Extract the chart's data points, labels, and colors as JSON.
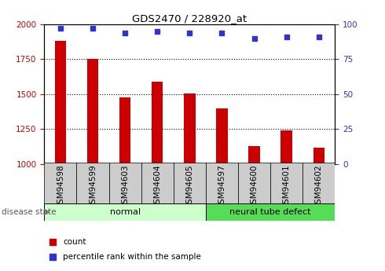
{
  "title": "GDS2470 / 228920_at",
  "categories": [
    "GSM94598",
    "GSM94599",
    "GSM94603",
    "GSM94604",
    "GSM94605",
    "GSM94597",
    "GSM94600",
    "GSM94601",
    "GSM94602"
  ],
  "counts": [
    1880,
    1750,
    1475,
    1590,
    1505,
    1400,
    1130,
    1240,
    1115
  ],
  "percentiles": [
    97,
    97,
    94,
    95,
    94,
    94,
    90,
    91,
    91
  ],
  "ylim_left": [
    1000,
    2000
  ],
  "ylim_right": [
    0,
    100
  ],
  "yticks_left": [
    1000,
    1250,
    1500,
    1750,
    2000
  ],
  "yticks_right": [
    0,
    25,
    50,
    75,
    100
  ],
  "bar_color": "#cc0000",
  "dot_color": "#3333cc",
  "bar_bottom": 1000,
  "disease_state_groups": [
    {
      "label": "normal",
      "color": "#ccffcc",
      "border_color": "#44cc44",
      "start": 0,
      "end": 5
    },
    {
      "label": "neural tube defect",
      "color": "#55dd55",
      "border_color": "#44cc44",
      "start": 5,
      "end": 9
    }
  ],
  "legend_items": [
    {
      "label": "count",
      "color": "#cc0000"
    },
    {
      "label": "percentile rank within the sample",
      "color": "#3333cc"
    }
  ],
  "disease_state_label": "disease state",
  "tick_bg_color": "#cccccc",
  "background_color": "#ffffff",
  "grid_lines": [
    1250,
    1500,
    1750
  ]
}
